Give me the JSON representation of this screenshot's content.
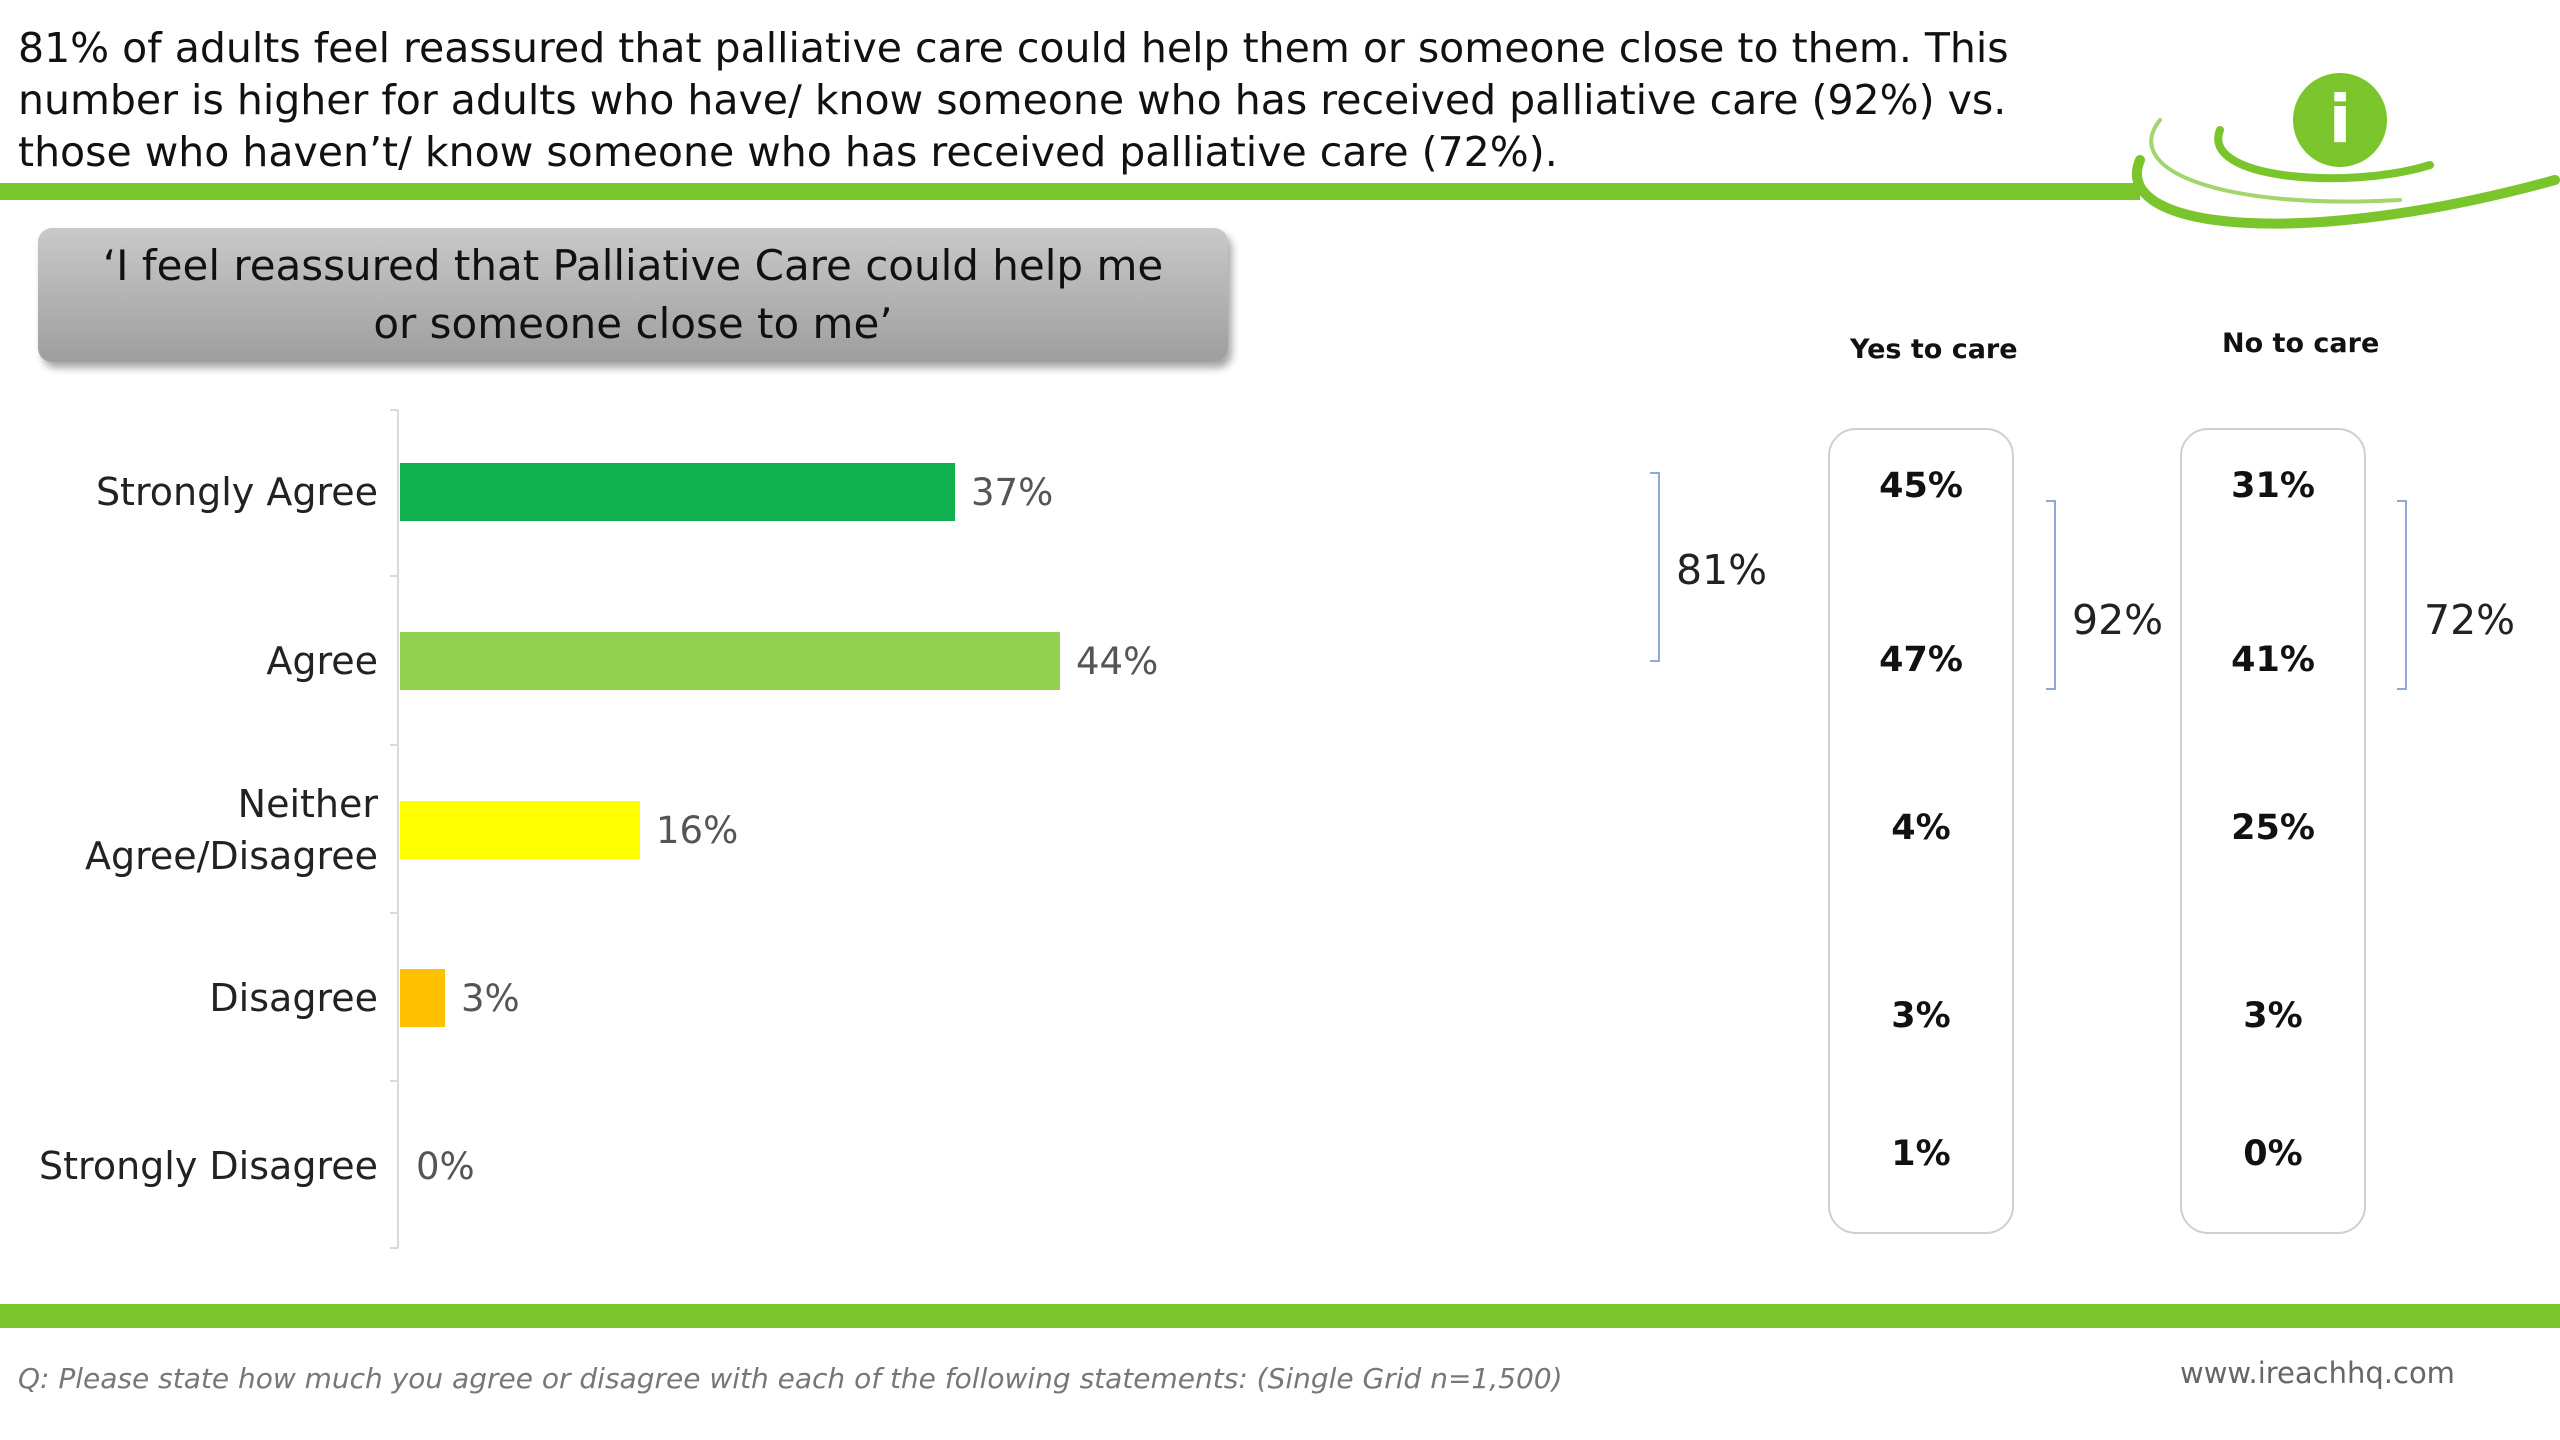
{
  "headline": "81% of adults feel reassured that palliative care could help them or someone close to them. This number is higher for adults who have/ know someone who has received palliative care (92%) vs. those who haven’t/ know someone who has received palliative care (72%).",
  "quote": "‘I feel reassured that Palliative Care could help me or someone close to me’",
  "colors": {
    "brand_green": "#7ac52b",
    "logo_green": "#7ac52b"
  },
  "logo_icon": "info-icon",
  "logo_letter": "i",
  "chart_data": {
    "type": "bar",
    "orientation": "horizontal",
    "categories": [
      "Strongly Agree",
      "Agree",
      "Neither Agree/Disagree",
      "Disagree",
      "Strongly Disagree"
    ],
    "category_lines": [
      [
        "Strongly Agree"
      ],
      [
        "Agree"
      ],
      [
        "Neither",
        "Agree/Disagree"
      ],
      [
        "Disagree"
      ],
      [
        "Strongly Disagree"
      ]
    ],
    "values": [
      37,
      44,
      16,
      3,
      0
    ],
    "value_labels": [
      "37%",
      "44%",
      "16%",
      "3%",
      "0%"
    ],
    "bar_colors": [
      "#0fb14f",
      "#92d050",
      "#ffff00",
      "#ffc000",
      "#ffc000"
    ],
    "xlim": [
      0,
      60
    ],
    "grid": false,
    "bracket_total_label": "81%"
  },
  "comparison": {
    "yes": {
      "header": "Yes to care",
      "values": [
        "45%",
        "47%",
        "4%",
        "3%",
        "1%"
      ],
      "bracket_label": "92%"
    },
    "no": {
      "header": "No to care",
      "values": [
        "31%",
        "41%",
        "25%",
        "3%",
        "0%"
      ],
      "bracket_label": "72%"
    }
  },
  "footnote": "Q: Please state how much you agree or disagree with each of the following statements: (Single Grid n=1,500)",
  "website": "www.ireachhq.com"
}
